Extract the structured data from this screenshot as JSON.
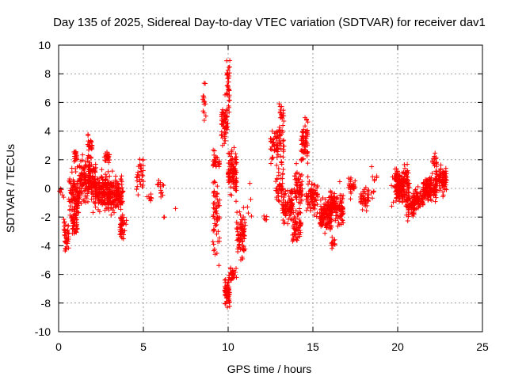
{
  "chart_data": {
    "type": "scatter",
    "title": "Day 135 of 2025, Sidereal Day-to-day VTEC variation (SDTVAR) for receiver dav1",
    "xlabel": "GPS time / hours",
    "ylabel": "SDTVAR / TECUs",
    "xlim": [
      0,
      25
    ],
    "ylim": [
      -10,
      10
    ],
    "xticks": [
      0,
      5,
      10,
      15,
      20,
      25
    ],
    "yticks": [
      -10,
      -8,
      -6,
      -4,
      -2,
      0,
      2,
      4,
      6,
      8,
      10
    ],
    "grid": true,
    "marker": "+",
    "color": "#ff0000",
    "clusters": [
      {
        "t": [
          0.0,
          0.3
        ],
        "center": -0.3,
        "spread": 0.6,
        "n": 6
      },
      {
        "t": [
          0.3,
          0.6
        ],
        "center": -3.3,
        "spread": 1.2,
        "n": 40
      },
      {
        "t": [
          0.6,
          1.2
        ],
        "center": -0.5,
        "spread": 1.8,
        "n": 110
      },
      {
        "t": [
          0.8,
          1.1
        ],
        "center": -2.5,
        "spread": 0.8,
        "n": 40
      },
      {
        "t": [
          0.9,
          1.1
        ],
        "center": 2.2,
        "spread": 0.5,
        "n": 18
      },
      {
        "t": [
          1.2,
          2.2
        ],
        "center": 0.7,
        "spread": 1.4,
        "n": 170
      },
      {
        "t": [
          1.7,
          2.0
        ],
        "center": 3.0,
        "spread": 0.9,
        "n": 25
      },
      {
        "t": [
          2.0,
          2.8
        ],
        "center": -0.2,
        "spread": 1.3,
        "n": 140
      },
      {
        "t": [
          2.7,
          3.0
        ],
        "center": 2.2,
        "spread": 0.4,
        "n": 20
      },
      {
        "t": [
          2.8,
          3.8
        ],
        "center": -0.4,
        "spread": 1.3,
        "n": 180
      },
      {
        "t": [
          3.6,
          4.0
        ],
        "center": -2.8,
        "spread": 1.0,
        "n": 40
      },
      {
        "t": [
          4.6,
          5.0
        ],
        "center": 1.0,
        "spread": 1.3,
        "n": 30
      },
      {
        "t": [
          5.2,
          5.5
        ],
        "center": -0.6,
        "spread": 0.4,
        "n": 8
      },
      {
        "t": [
          5.8,
          6.2
        ],
        "center": 0.0,
        "spread": 0.5,
        "n": 14
      },
      {
        "t": [
          6.1,
          6.3
        ],
        "center": -2.0,
        "spread": 0.1,
        "n": 2
      },
      {
        "t": [
          6.8,
          6.9
        ],
        "center": -1.4,
        "spread": 0.1,
        "n": 1
      },
      {
        "t": [
          8.5,
          8.7
        ],
        "center": 6.2,
        "spread": 2.0,
        "n": 14
      },
      {
        "t": [
          9.1,
          9.5
        ],
        "center": -1.8,
        "spread": 3.2,
        "n": 60
      },
      {
        "t": [
          9.1,
          9.5
        ],
        "center": 2.0,
        "spread": 0.6,
        "n": 25
      },
      {
        "t": [
          9.6,
          10.0
        ],
        "center": 4.5,
        "spread": 1.6,
        "n": 60
      },
      {
        "t": [
          9.8,
          10.1
        ],
        "center": -7.2,
        "spread": 1.2,
        "n": 60
      },
      {
        "t": [
          9.9,
          10.1
        ],
        "center": 7.3,
        "spread": 1.8,
        "n": 35
      },
      {
        "t": [
          10.0,
          10.5
        ],
        "center": 1.2,
        "spread": 1.5,
        "n": 100
      },
      {
        "t": [
          10.1,
          10.5
        ],
        "center": -6.0,
        "spread": 0.5,
        "n": 25
      },
      {
        "t": [
          10.5,
          11.0
        ],
        "center": -3.3,
        "spread": 1.6,
        "n": 80
      },
      {
        "t": [
          11.0,
          11.4
        ],
        "center": -1.0,
        "spread": 3.0,
        "n": 6
      },
      {
        "t": [
          12.1,
          12.4
        ],
        "center": -2.2,
        "spread": 0.3,
        "n": 5
      },
      {
        "t": [
          12.5,
          13.3
        ],
        "center": 3.0,
        "spread": 1.6,
        "n": 80
      },
      {
        "t": [
          12.8,
          13.3
        ],
        "center": 0.0,
        "spread": 1.0,
        "n": 40
      },
      {
        "t": [
          13.0,
          13.3
        ],
        "center": 5.2,
        "spread": 0.6,
        "n": 15
      },
      {
        "t": [
          13.2,
          13.8
        ],
        "center": -1.2,
        "spread": 1.2,
        "n": 90
      },
      {
        "t": [
          13.8,
          14.3
        ],
        "center": -2.5,
        "spread": 1.2,
        "n": 60
      },
      {
        "t": [
          13.9,
          14.4
        ],
        "center": 0.0,
        "spread": 1.4,
        "n": 60
      },
      {
        "t": [
          14.3,
          14.7
        ],
        "center": 3.3,
        "spread": 1.8,
        "n": 60
      },
      {
        "t": [
          14.6,
          15.3
        ],
        "center": -0.6,
        "spread": 1.2,
        "n": 80
      },
      {
        "t": [
          15.4,
          16.1
        ],
        "center": -1.8,
        "spread": 1.2,
        "n": 130
      },
      {
        "t": [
          16.0,
          16.8
        ],
        "center": -1.2,
        "spread": 1.3,
        "n": 120
      },
      {
        "t": [
          16.1,
          16.3
        ],
        "center": -4.0,
        "spread": 0.5,
        "n": 12
      },
      {
        "t": [
          17.1,
          17.5
        ],
        "center": 0.2,
        "spread": 0.8,
        "n": 25
      },
      {
        "t": [
          17.8,
          18.3
        ],
        "center": -0.8,
        "spread": 0.9,
        "n": 40
      },
      {
        "t": [
          18.4,
          18.8
        ],
        "center": 0.9,
        "spread": 1.4,
        "n": 10
      },
      {
        "t": [
          19.6,
          19.8
        ],
        "center": 0.6,
        "spread": 1.8,
        "n": 4
      },
      {
        "t": [
          19.8,
          20.7
        ],
        "center": 0.2,
        "spread": 1.3,
        "n": 180
      },
      {
        "t": [
          20.5,
          21.0
        ],
        "center": -1.3,
        "spread": 0.8,
        "n": 60
      },
      {
        "t": [
          20.9,
          21.5
        ],
        "center": -0.8,
        "spread": 0.7,
        "n": 70
      },
      {
        "t": [
          21.5,
          22.3
        ],
        "center": 0.0,
        "spread": 0.8,
        "n": 140
      },
      {
        "t": [
          22.0,
          22.3
        ],
        "center": 2.0,
        "spread": 0.6,
        "n": 15
      },
      {
        "t": [
          22.2,
          22.9
        ],
        "center": 0.6,
        "spread": 1.0,
        "n": 90
      }
    ]
  }
}
